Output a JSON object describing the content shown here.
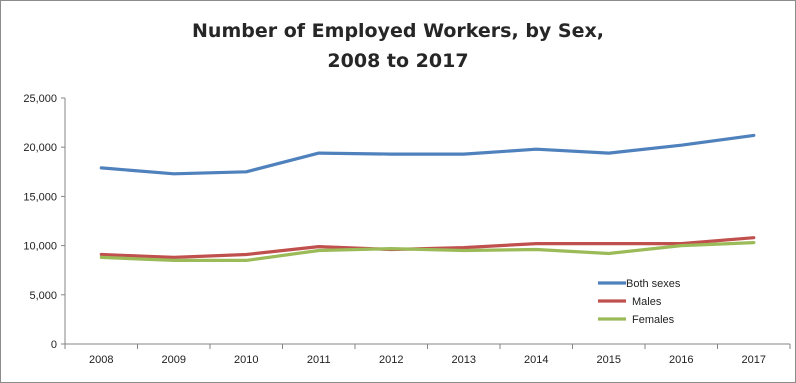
{
  "chart_data": {
    "type": "line",
    "title_line1": "Number of Employed Workers, by Sex,",
    "title_line2": "2008 to 2017",
    "xlabel": "",
    "ylabel": "",
    "categories": [
      "2008",
      "2009",
      "2010",
      "2011",
      "2012",
      "2013",
      "2014",
      "2015",
      "2016",
      "2017"
    ],
    "ylim": [
      0,
      25000
    ],
    "yticks": [
      0,
      5000,
      10000,
      15000,
      20000,
      25000
    ],
    "ytick_labels": [
      "0",
      "5,000",
      "10,000",
      "15,000",
      "20,000",
      "25,000"
    ],
    "grid": false,
    "legend_position": "bottom-right",
    "series": [
      {
        "name": "Both sexes",
        "color": "#4f81bd",
        "values": [
          17900,
          17300,
          17500,
          19400,
          19300,
          19300,
          19800,
          19400,
          20200,
          21200
        ]
      },
      {
        "name": "Males",
        "color": "#c0504d",
        "values": [
          9100,
          8800,
          9100,
          9900,
          9600,
          9800,
          10200,
          10200,
          10200,
          10800
        ]
      },
      {
        "name": "Females",
        "color": "#9bbb59",
        "values": [
          8800,
          8500,
          8500,
          9500,
          9700,
          9500,
          9600,
          9200,
          10000,
          10300
        ]
      }
    ]
  }
}
